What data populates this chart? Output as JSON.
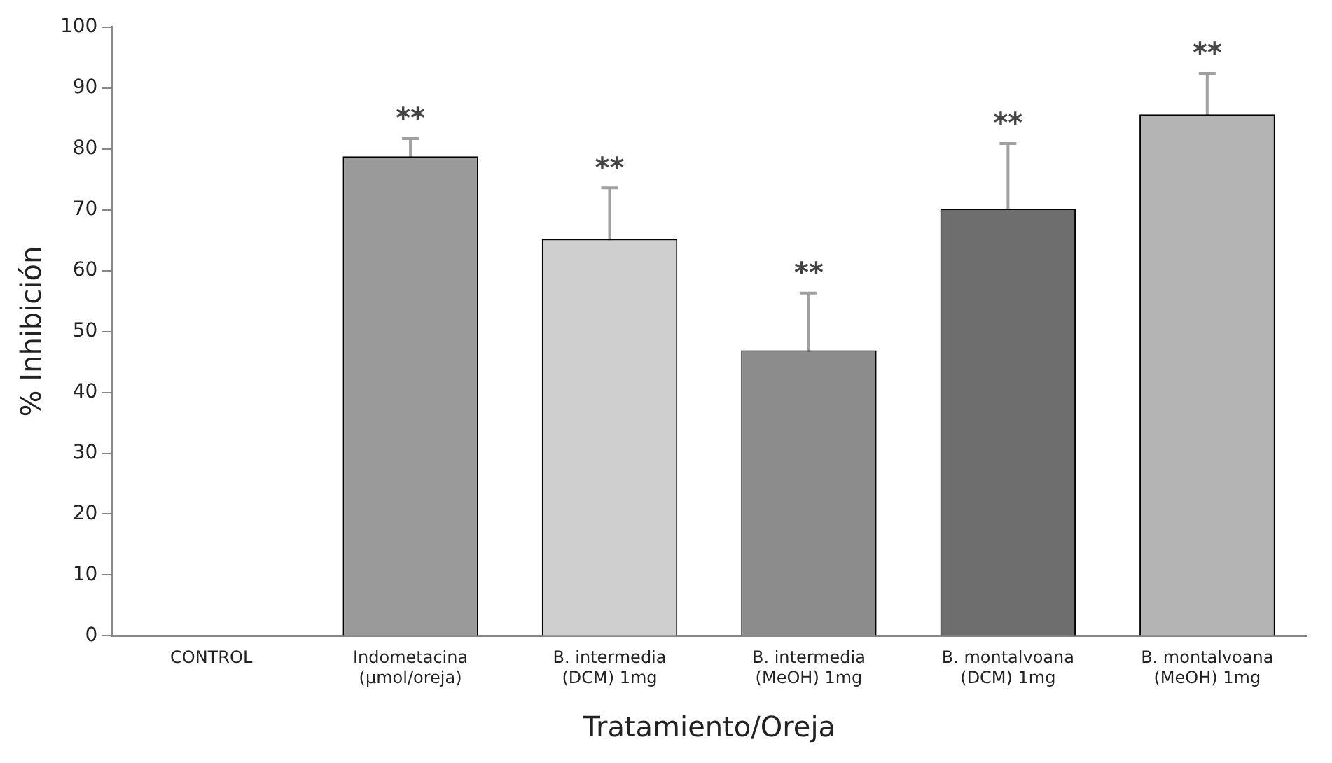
{
  "chart_data": {
    "type": "bar",
    "xlabel": "Tratamiento/Oreja",
    "ylabel": "% Inhibición",
    "categories": [
      "CONTROL",
      "Indometacina\n(µmol/oreja)",
      "B. intermedia\n(DCM) 1mg",
      "B. intermedia\n(MeOH) 1mg",
      "B. montalvoana\n(DCM) 1mg",
      "B. montalvoana\n(MeOH) 1mg"
    ],
    "values": [
      0,
      78.8,
      65.2,
      46.9,
      70.2,
      85.7
    ],
    "errors": [
      null,
      2.9,
      8.4,
      9.4,
      10.7,
      6.7
    ],
    "colors": [
      "#ffffff",
      "#9a9a9a",
      "#cfcfcf",
      "#8c8c8c",
      "#6e6e6e",
      "#b4b4b4"
    ],
    "ylim": [
      0,
      100
    ],
    "yticks": [
      0,
      10,
      20,
      30,
      40,
      50,
      60,
      70,
      80,
      90,
      100
    ],
    "grid": false,
    "legend": false,
    "annotations": [
      {
        "text": "**",
        "x": "Indometacina\n(µmol/oreja)",
        "y": 81.7
      },
      {
        "text": "**",
        "x": "B. intermedia\n(DCM) 1mg",
        "y": 73.6
      },
      {
        "text": "**",
        "x": "B. intermedia\n(MeOH) 1mg",
        "y": 56.3
      },
      {
        "text": "**",
        "x": "B. montalvoana\n(DCM) 1mg",
        "y": 80.9
      },
      {
        "text": "**",
        "x": "B. montalvoana\n(MeOH) 1mg",
        "y": 92.4
      }
    ]
  }
}
